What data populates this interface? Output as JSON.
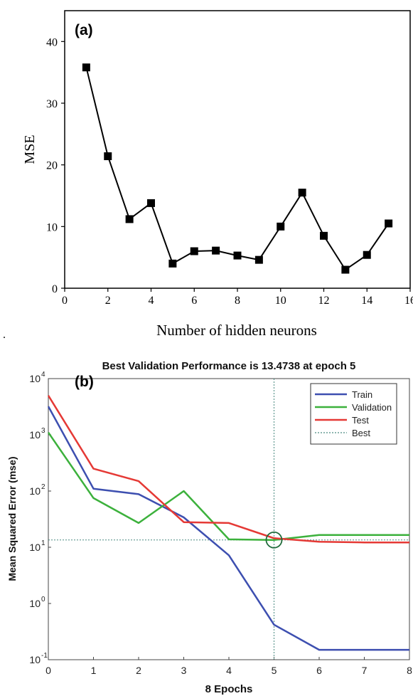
{
  "stray_mark": ".",
  "chart_data": [
    {
      "type": "line",
      "panel_label": "(a)",
      "title": "",
      "xlabel": "Number of hidden neurons",
      "ylabel": "MSE",
      "xlim": [
        0,
        16
      ],
      "ylim": [
        0,
        45
      ],
      "x_ticks": [
        "0",
        "2",
        "4",
        "6",
        "8",
        "10",
        "12",
        "14",
        "16"
      ],
      "y_ticks": [
        "0",
        "10",
        "20",
        "30",
        "40"
      ],
      "marker": "square",
      "color": "#000000",
      "series": [
        {
          "x": [
            1,
            2,
            3,
            4,
            5,
            6,
            7,
            8,
            9,
            10,
            11,
            12,
            13,
            14,
            15
          ],
          "values": [
            35.8,
            21.4,
            11.2,
            13.8,
            4.0,
            6.0,
            6.1,
            5.3,
            4.6,
            10.0,
            15.5,
            8.5,
            3.0,
            5.4,
            10.5
          ]
        }
      ]
    },
    {
      "type": "line",
      "panel_label": "(b)",
      "title": "Best Validation Performance is 13.4738 at epoch 5",
      "xlabel": "8 Epochs",
      "ylabel": "Mean Squared Error  (mse)",
      "yscale": "log",
      "xlim": [
        0,
        8
      ],
      "ylim": [
        0.1,
        10000
      ],
      "x_ticks": [
        "0",
        "1",
        "2",
        "3",
        "4",
        "5",
        "6",
        "7",
        "8"
      ],
      "y_ticks": [
        {
          "base": "10",
          "exp": "-1"
        },
        {
          "base": "10",
          "exp": "0"
        },
        {
          "base": "10",
          "exp": "1"
        },
        {
          "base": "10",
          "exp": "2"
        },
        {
          "base": "10",
          "exp": "3"
        },
        {
          "base": "10",
          "exp": "4"
        }
      ],
      "legend_position": "top-right",
      "best": {
        "epoch": 5,
        "value": 13.4738
      },
      "series": [
        {
          "name": "Train",
          "color": "#3d4fb0",
          "x": [
            0,
            1,
            2,
            3,
            4,
            5,
            6,
            7,
            8
          ],
          "values": [
            3200,
            110,
            88,
            34,
            7.2,
            0.42,
            0.15,
            0.15,
            0.15
          ]
        },
        {
          "name": "Validation",
          "color": "#3cb13c",
          "x": [
            0,
            1,
            2,
            3,
            4,
            5,
            6,
            7,
            8
          ],
          "values": [
            1100,
            75,
            27,
            100,
            13.8,
            13.4738,
            16.5,
            16.5,
            16.5
          ]
        },
        {
          "name": "Test",
          "color": "#e53935",
          "x": [
            0,
            1,
            2,
            3,
            4,
            5,
            6,
            7,
            8
          ],
          "values": [
            5000,
            250,
            150,
            28,
            27,
            14.5,
            12.5,
            12.2,
            12.2
          ]
        }
      ],
      "best_legend_label": "Best",
      "best_color": "#4a8a80"
    }
  ]
}
